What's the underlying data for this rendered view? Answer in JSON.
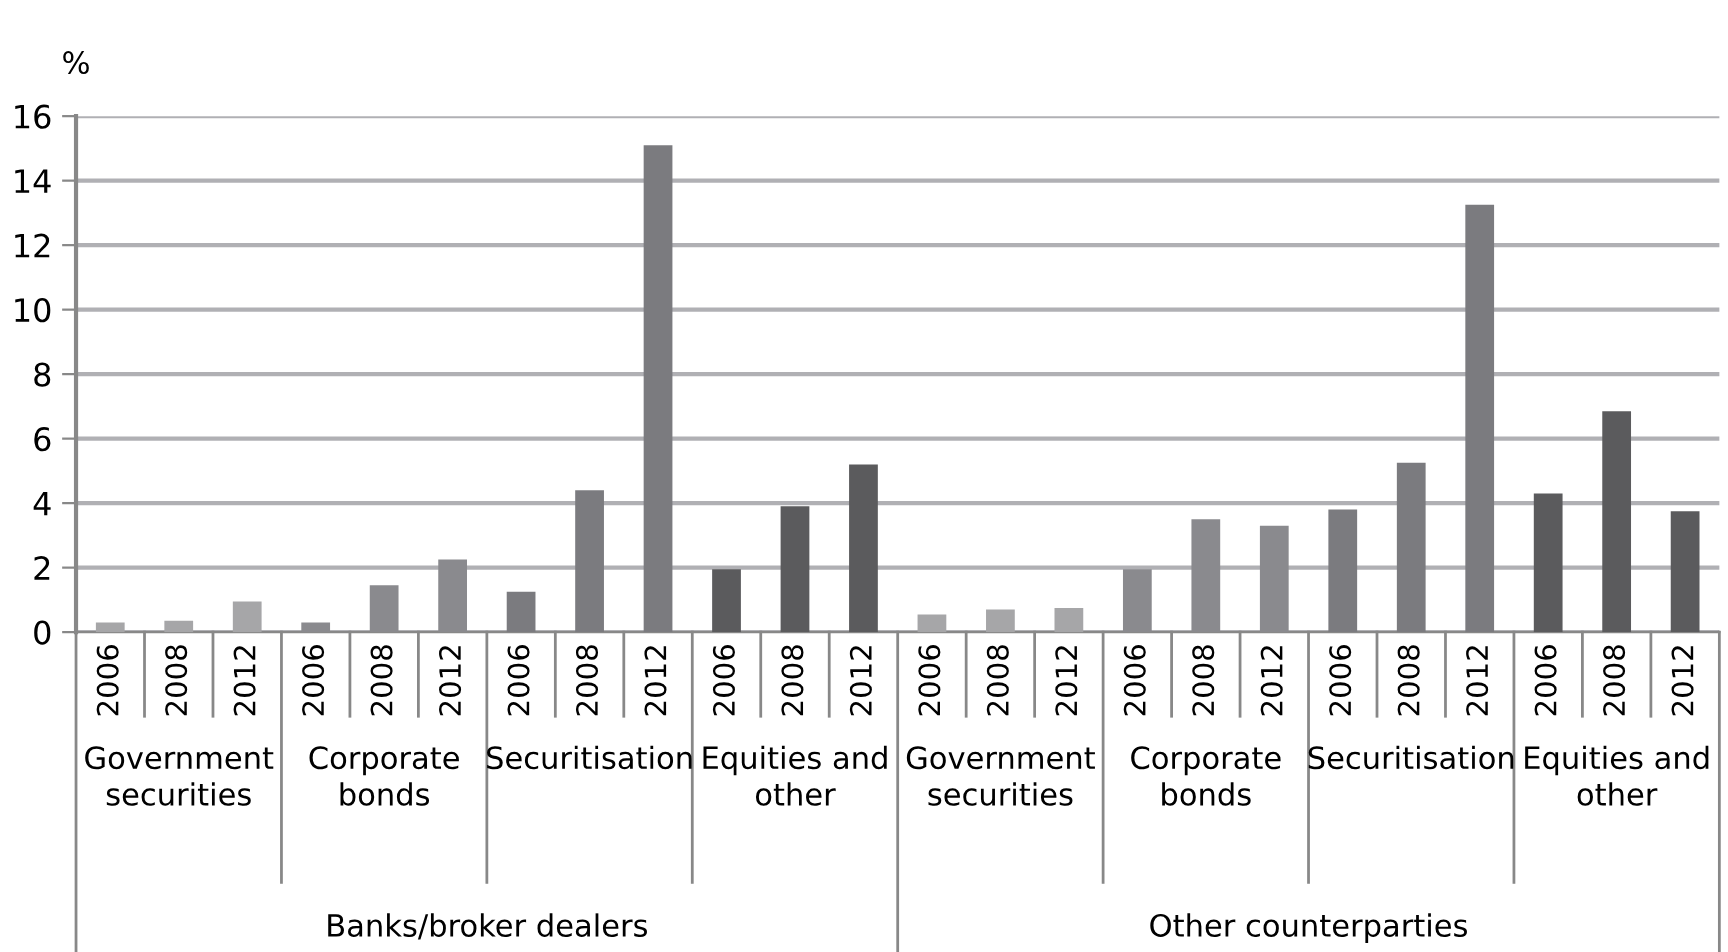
{
  "chart_data": {
    "type": "bar",
    "ylabel": "%",
    "categories": [
      "2006",
      "2008",
      "2012",
      "2006",
      "2008",
      "2012",
      "2006",
      "2008",
      "2012",
      "2006",
      "2008",
      "2012",
      "2006",
      "2008",
      "2012",
      "2006",
      "2008",
      "2012",
      "2006",
      "2008",
      "2012",
      "2006",
      "2008",
      "2012"
    ],
    "values": [
      0.3,
      0.35,
      0.95,
      0.3,
      1.45,
      2.25,
      1.25,
      4.4,
      15.1,
      1.95,
      3.9,
      5.2,
      0.55,
      0.7,
      0.75,
      1.95,
      3.5,
      3.3,
      3.8,
      5.25,
      13.25,
      4.3,
      6.85,
      3.75
    ],
    "colors": [
      "#a6a6a8",
      "#a6a6a8",
      "#a6a6a8",
      "#8a8a8e",
      "#8a8a8e",
      "#8a8a8e",
      "#7b7b7f",
      "#7b7b7f",
      "#7b7b7f",
      "#5b5b5d",
      "#5b5b5d",
      "#5b5b5d",
      "#a6a6a8",
      "#a6a6a8",
      "#a6a6a8",
      "#8a8a8e",
      "#8a8a8e",
      "#8a8a8e",
      "#7b7b7f",
      "#7b7b7f",
      "#7b7b7f",
      "#5b5b5d",
      "#5b5b5d",
      "#5b5b5d"
    ],
    "annotations": [
      "Government securities",
      "Corporate bonds",
      "Securitisation",
      "Equities and other",
      "Government securities",
      "Corporate bonds",
      "Securitisation",
      "Equities and other",
      "Banks/broker dealers",
      "Other counterparties"
    ],
    "ylim": [
      0,
      16
    ],
    "yticks": [
      0,
      2,
      4,
      6,
      8,
      10,
      12,
      14,
      16
    ],
    "grid": "y"
  }
}
